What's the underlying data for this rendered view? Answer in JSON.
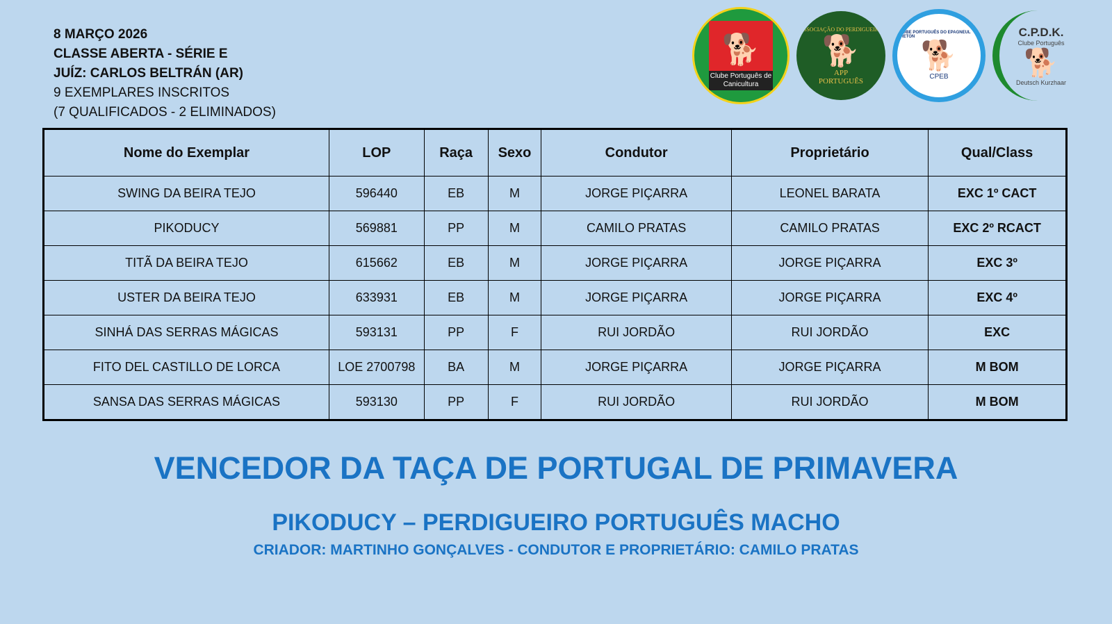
{
  "info": {
    "date": "8 MARÇO 2026",
    "class": "CLASSE ABERTA - SÉRIE E",
    "judge": "JUÍZ: CARLOS BELTRÁN (AR)",
    "entries": "9 EXEMPLARES INSCRITOS",
    "summary": "(7 QUALIFICADOS - 2 ELIMINADOS)"
  },
  "logos": [
    {
      "name": "Clube Português de Canicultura",
      "caption": "Clube Português de Canicultura"
    },
    {
      "name": "Associação do Perdigueiro Português",
      "top": "ASSOCIAÇÃO DO PERDIGUEIRO",
      "mid": "APP",
      "bottom": "PORTUGUÊS"
    },
    {
      "name": "Clube Português do Epagneul Breton",
      "top": "CLUBE PORTUGUÊS DO EPAGNEUL BRETON",
      "bottom": "CPEB"
    },
    {
      "name": "C.P.D.K.",
      "title": "C.P.D.K.",
      "sub": "Clube Português",
      "side": "Deutsch Kurzhaar"
    }
  ],
  "table": {
    "headers": [
      "Nome do Exemplar",
      "LOP",
      "Raça",
      "Sexo",
      "Condutor",
      "Proprietário",
      "Qual/Class"
    ],
    "rows": [
      [
        "SWING DA BEIRA TEJO",
        "596440",
        "EB",
        "M",
        "JORGE PIÇARRA",
        "LEONEL BARATA",
        "EXC 1º CACT"
      ],
      [
        "PIKODUCY",
        "569881",
        "PP",
        "M",
        "CAMILO PRATAS",
        "CAMILO PRATAS",
        "EXC 2º RCACT"
      ],
      [
        "TITÃ DA BEIRA TEJO",
        "615662",
        "EB",
        "M",
        "JORGE PIÇARRA",
        "JORGE PIÇARRA",
        "EXC 3º"
      ],
      [
        "USTER DA BEIRA TEJO",
        "633931",
        "EB",
        "M",
        "JORGE PIÇARRA",
        "JORGE PIÇARRA",
        "EXC 4º"
      ],
      [
        "SINHÁ DAS SERRAS MÁGICAS",
        "593131",
        "PP",
        "F",
        "RUI JORDÃO",
        "RUI JORDÃO",
        "EXC"
      ],
      [
        "FITO DEL CASTILLO DE LORCA",
        "LOE 2700798",
        "BA",
        "M",
        "JORGE PIÇARRA",
        "JORGE PIÇARRA",
        "M BOM"
      ],
      [
        "SANSA DAS SERRAS MÁGICAS",
        "593130",
        "PP",
        "F",
        "RUI JORDÃO",
        "RUI JORDÃO",
        "M BOM"
      ]
    ]
  },
  "winner": {
    "title": "VENCEDOR DA TAÇA DE PORTUGAL DE PRIMAVERA",
    "dog": "PIKODUCY – PERDIGUEIRO PORTUGUÊS MACHO",
    "details": "CRIADOR: MARTINHO GONÇALVES -  CONDUTOR E PROPRIETÁRIO: CAMILO PRATAS"
  },
  "colors": {
    "background": "#bdd7ee",
    "accent": "#1a73c4"
  }
}
